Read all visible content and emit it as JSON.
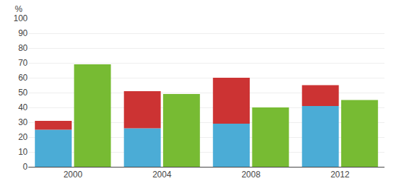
{
  "chart_data": {
    "type": "bar",
    "ylabel": "%",
    "categories": [
      "2000",
      "2004",
      "2008",
      "2012"
    ],
    "series": [
      {
        "color": "#4BACD6",
        "values": [
          25,
          26,
          29,
          41
        ],
        "stacked": true
      },
      {
        "color": "#CC3333",
        "values": [
          6,
          25,
          31,
          14
        ],
        "stacked": true
      },
      {
        "color": "#77BB33",
        "values": [
          69,
          49,
          40,
          45
        ]
      }
    ],
    "ylim": [
      0,
      100
    ],
    "yticks": [
      0,
      10,
      20,
      30,
      40,
      50,
      60,
      70,
      80,
      90,
      100
    ],
    "grid": true
  }
}
